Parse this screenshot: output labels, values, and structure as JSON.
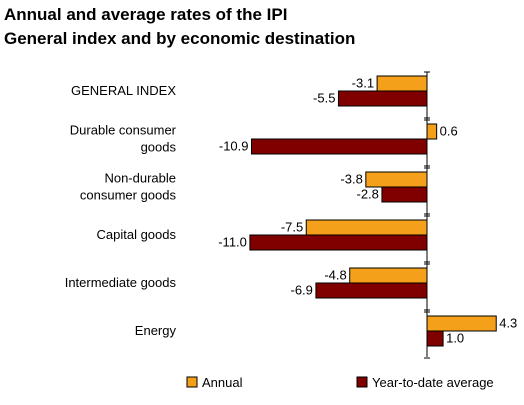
{
  "chart_data": {
    "type": "bar",
    "orientation": "horizontal",
    "title": "Annual and average rates of the IPI",
    "subtitle": "General index and by economic destination",
    "categories": [
      [
        "GENERAL INDEX"
      ],
      [
        "Durable consumer",
        "goods"
      ],
      [
        "Non-durable",
        "consumer goods"
      ],
      [
        "Capital goods"
      ],
      [
        "Intermediate goods"
      ],
      [
        "Energy"
      ]
    ],
    "series": [
      {
        "name": "Annual",
        "color": "#f5a01a",
        "values": [
          -3.1,
          0.6,
          -3.8,
          -7.5,
          -4.8,
          4.3
        ]
      },
      {
        "name": "Year-to-date average",
        "color": "#800000",
        "values": [
          -5.5,
          -10.9,
          -2.8,
          -11.0,
          -6.9,
          1.0
        ]
      }
    ],
    "value_labels": [
      [
        "-3.1",
        "0.6",
        "-3.8",
        "-7.5",
        "-4.8",
        "4.3"
      ],
      [
        "-5.5",
        "-10.9",
        "-2.8",
        "-11.0",
        "-6.9",
        "1.0"
      ]
    ],
    "legend_position": "bottom",
    "grid": false
  }
}
